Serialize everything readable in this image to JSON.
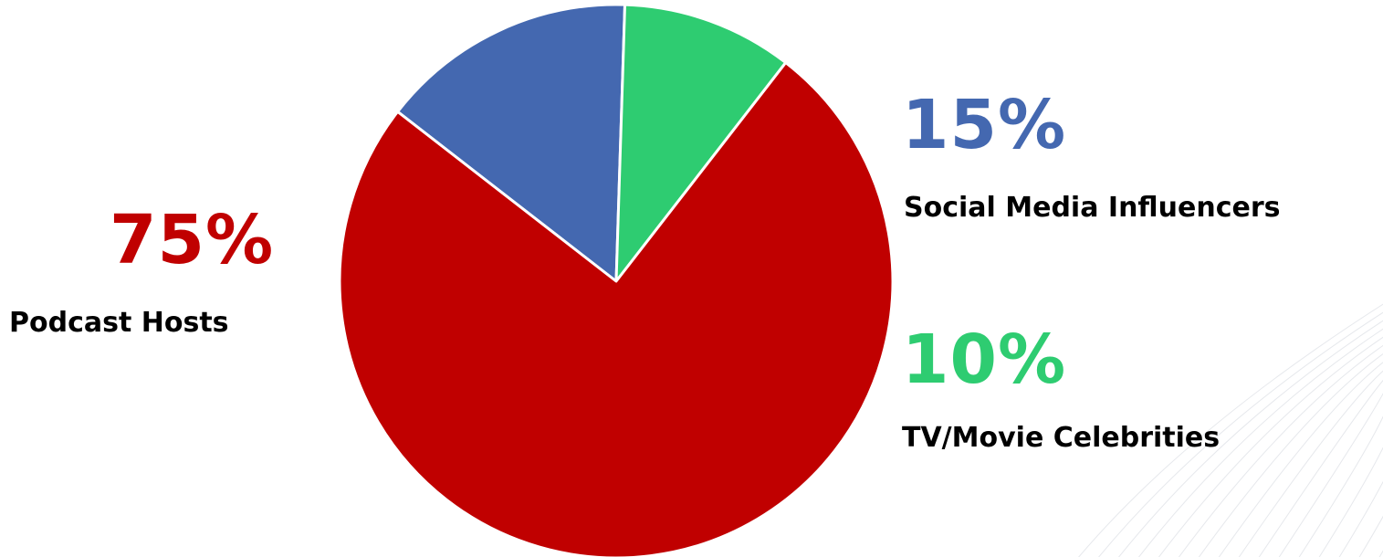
{
  "chart_data": {
    "type": "pie",
    "slices": [
      {
        "label": "Social Media Influencers",
        "value": 15,
        "value_label": "15%",
        "color": "#4468b0"
      },
      {
        "label": "TV/Movie Celebrities",
        "value": 10,
        "value_label": "10%",
        "color": "#2ecc71"
      },
      {
        "label": "Podcast Hosts",
        "value": 75,
        "value_label": "75%",
        "color": "#c00000"
      }
    ],
    "title": "",
    "legend": "none",
    "slice_border_color": "#ffffff",
    "label_color": "#000000",
    "background_color": "#ffffff"
  }
}
